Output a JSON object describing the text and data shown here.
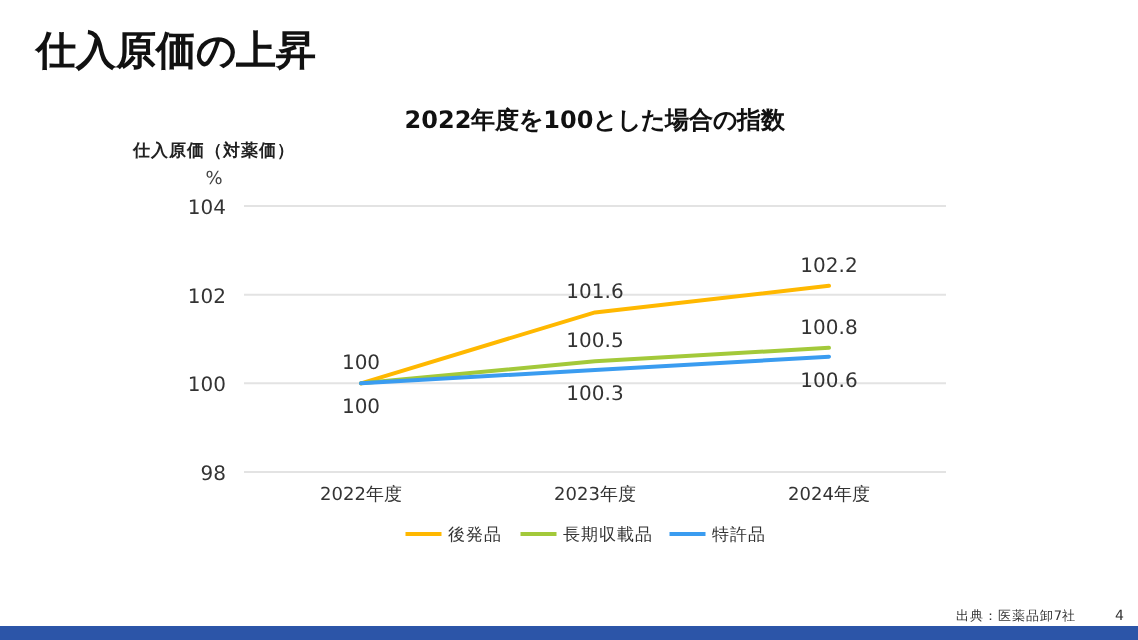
{
  "chart_data": {
    "type": "line",
    "title": "仕入原価の上昇",
    "subtitle": "2022年度を100とした場合の指数",
    "ylabel": "仕入原価（対薬価）",
    "annotations": [
      "%",
      "出典：医薬品卸7社",
      "4"
    ],
    "categories": [
      "2022年度",
      "2023年度",
      "2024年度"
    ],
    "series": [
      {
        "name": "後発品",
        "color": "#ffb800",
        "values": [
          100,
          101.6,
          102.2
        ],
        "value_labels": [
          "100",
          "101.6",
          "102.2"
        ]
      },
      {
        "name": "長期収載品",
        "color": "#a3c93a",
        "values": [
          100,
          100.5,
          100.8
        ],
        "value_labels": [
          null,
          "100.5",
          "100.8"
        ]
      },
      {
        "name": "特許品",
        "color": "#3a9cf0",
        "values": [
          100,
          100.3,
          100.6
        ],
        "value_labels": [
          "100",
          "100.3",
          "100.6"
        ]
      }
    ],
    "ylim": [
      98,
      104
    ],
    "yticks": [
      98,
      100,
      102,
      104
    ],
    "grid": "y",
    "legend": "bottom",
    "marker": "none",
    "line_style": "solid"
  }
}
